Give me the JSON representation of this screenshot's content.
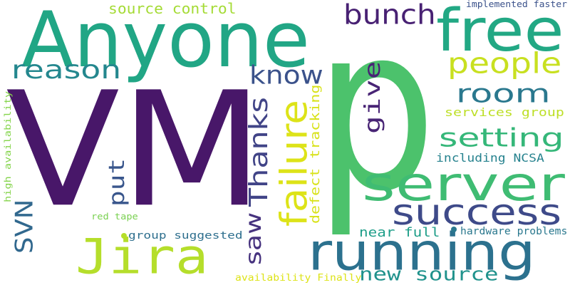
{
  "background": "#ffffff",
  "words": [
    {
      "text": "VM",
      "color": "#481769"
    },
    {
      "text": "p",
      "color": "#4cc26c"
    },
    {
      "text": "Anyone",
      "color": "#21a685"
    },
    {
      "text": "free",
      "color": "#22a884"
    },
    {
      "text": "server",
      "color": "#3fbc73"
    },
    {
      "text": "running",
      "color": "#2c718e"
    },
    {
      "text": "Jira",
      "color": "#b5de2b"
    },
    {
      "text": "success",
      "color": "#3e4a89"
    },
    {
      "text": "failure",
      "color": "#dde318"
    },
    {
      "text": "reason",
      "color": "#24878e"
    },
    {
      "text": "Thanks",
      "color": "#414487"
    },
    {
      "text": "bunch",
      "color": "#482173"
    },
    {
      "text": "people",
      "color": "#c8e020"
    },
    {
      "text": "know",
      "color": "#3b528b"
    },
    {
      "text": "room",
      "color": "#2a788e"
    },
    {
      "text": "setting",
      "color": "#35b779"
    },
    {
      "text": "give",
      "color": "#482475"
    },
    {
      "text": "put",
      "color": "#39568c"
    },
    {
      "text": "SVN",
      "color": "#31688e"
    },
    {
      "text": "saw",
      "color": "#46327e"
    },
    {
      "text": "new source",
      "color": "#20928c"
    },
    {
      "text": "source control",
      "color": "#a5db36"
    },
    {
      "text": "services group",
      "color": "#bddf26"
    },
    {
      "text": "including NCSA",
      "color": "#26828e"
    },
    {
      "text": "defect tracking",
      "color": "#d8e219"
    },
    {
      "text": "near full",
      "color": "#1f9e89"
    },
    {
      "text": "group suggested",
      "color": "#2e6f8e"
    },
    {
      "text": "hardware problems",
      "color": "#2a788e"
    },
    {
      "text": "implemented faster",
      "color": "#3b528b"
    },
    {
      "text": "high availability",
      "color": "#84d44b"
    },
    {
      "text": "red tape",
      "color": "#7ad151"
    },
    {
      "text": "availability Finally",
      "color": "#dde318"
    }
  ],
  "dots": [
    {
      "color": "#b5de2b"
    },
    {
      "color": "#2a788e"
    }
  ]
}
